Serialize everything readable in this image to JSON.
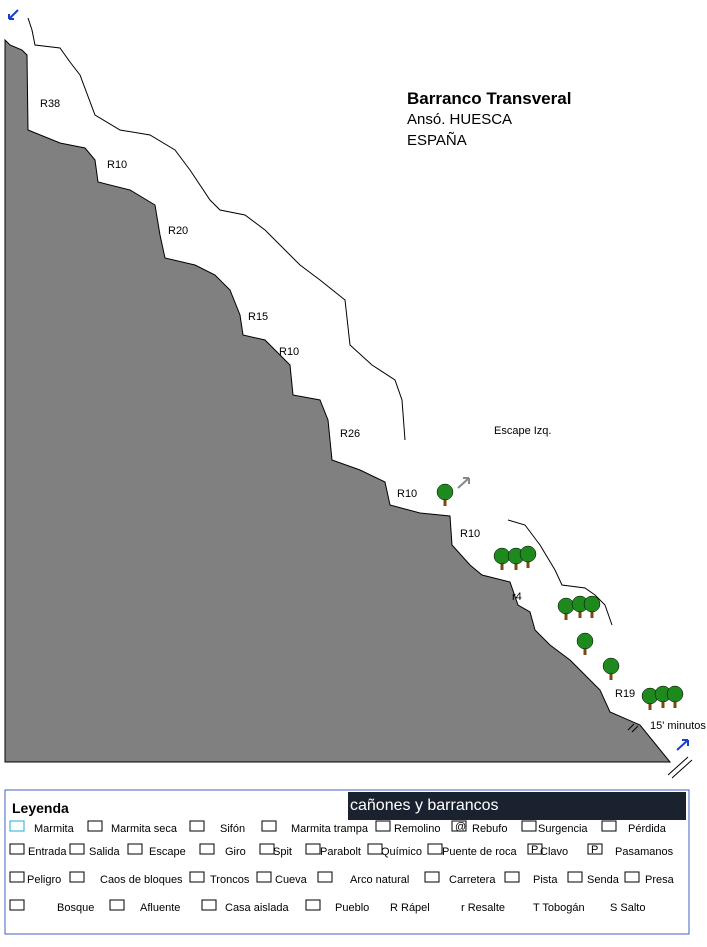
{
  "header": {
    "title": "Barranco Transveral",
    "subtitle": "Ansó. HUESCA",
    "country": "ESPAÑA"
  },
  "topo": {
    "labels": [
      "R38",
      "R10",
      "R20",
      "R15",
      "R10",
      "R26",
      "R10",
      "R10",
      "r4",
      "R19"
    ],
    "escape": "Escape Izq.",
    "time": "15' minutos"
  },
  "legend": {
    "title": "Leyenda",
    "banner": "cañones y barrancos",
    "rows": [
      [
        {
          "label": "Marmita"
        },
        {
          "label": "Marmita seca"
        },
        {
          "label": "Sifón"
        },
        {
          "label": "Marmita trampa"
        },
        {
          "label": "Remolino"
        },
        {
          "label": "Rebufo",
          "symbol": "@"
        },
        {
          "label": "Surgencia"
        },
        {
          "label": "Pérdida"
        }
      ],
      [
        {
          "label": "Entrada"
        },
        {
          "label": "Salida"
        },
        {
          "label": "Escape"
        },
        {
          "label": "Giro"
        },
        {
          "label": "Spit"
        },
        {
          "label": "Parabolt"
        },
        {
          "label": "Químico"
        },
        {
          "label": "Puente de roca"
        },
        {
          "label": "Clavo",
          "symbol": "P"
        },
        {
          "label": "Pasamanos",
          "symbol": "P"
        }
      ],
      [
        {
          "label": "Peligro"
        },
        {
          "label": "Caos de bloques"
        },
        {
          "label": "Troncos"
        },
        {
          "label": "Cueva"
        },
        {
          "label": "Arco natural"
        },
        {
          "label": "Carretera"
        },
        {
          "label": "Pista"
        },
        {
          "label": "Senda"
        },
        {
          "label": "Presa"
        }
      ],
      [
        {
          "label": "Bosque"
        },
        {
          "label": "Afluente"
        },
        {
          "label": "Casa aislada"
        },
        {
          "label": "Pueblo"
        },
        {
          "label": "R Rápel"
        },
        {
          "label": "r Resalte"
        },
        {
          "label": "T Tobogán"
        },
        {
          "label": "S Salto"
        }
      ]
    ]
  }
}
